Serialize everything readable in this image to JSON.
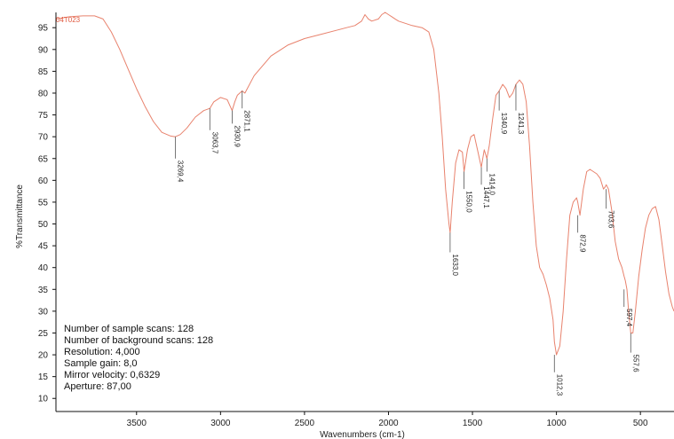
{
  "chart_data": {
    "type": "line",
    "xlabel": "Wavenumbers (cm-1)",
    "ylabel": "%Transmittance",
    "xlim": [
      3980,
      300
    ],
    "ylim": [
      7,
      98.5
    ],
    "x_reversed": true,
    "grid": false,
    "x_ticks": [
      3500,
      3000,
      2500,
      2000,
      1500,
      1000,
      500
    ],
    "y_ticks": [
      10,
      15,
      20,
      25,
      30,
      35,
      40,
      45,
      50,
      55,
      60,
      65,
      70,
      75,
      80,
      85,
      90,
      95
    ],
    "series": [
      {
        "name": "04T023",
        "color": "#e8826d",
        "x": [
          3980,
          3900,
          3820,
          3750,
          3700,
          3650,
          3600,
          3550,
          3500,
          3450,
          3400,
          3350,
          3300,
          3269.4,
          3240,
          3200,
          3150,
          3100,
          3063.7,
          3040,
          3000,
          2960,
          2930.9,
          2915,
          2900,
          2871.1,
          2855,
          2800,
          2700,
          2600,
          2500,
          2400,
          2300,
          2250,
          2200,
          2160,
          2140,
          2120,
          2100,
          2060,
          2040,
          2020,
          2000,
          1980,
          1960,
          1940,
          1900,
          1860,
          1800,
          1760,
          1730,
          1700,
          1680,
          1660,
          1640,
          1633.0,
          1620,
          1600,
          1580,
          1560,
          1550.0,
          1530,
          1510,
          1490,
          1470,
          1447.1,
          1430,
          1414.0,
          1400,
          1380,
          1360,
          1340.9,
          1320,
          1300,
          1280,
          1260,
          1241.3,
          1220,
          1200,
          1180,
          1160,
          1140,
          1120,
          1100,
          1080,
          1060,
          1040,
          1020,
          1012.3,
          1000,
          980,
          960,
          940,
          920,
          900,
          880,
          872.9,
          860,
          840,
          820,
          800,
          780,
          760,
          740,
          720,
          710,
          703.6,
          690,
          670,
          650,
          630,
          610,
          597.4,
          590,
          580,
          570,
          557.6,
          545,
          530,
          510,
          490,
          470,
          450,
          430,
          410,
          390,
          370,
          350,
          330,
          310,
          300
        ],
        "y": [
          97,
          97.5,
          97.7,
          97.7,
          97,
          94,
          90,
          85.5,
          81,
          77,
          73.5,
          71,
          70.2,
          70,
          70.5,
          72,
          74.5,
          76,
          76.5,
          78,
          79,
          78.5,
          76,
          78,
          79.5,
          80.5,
          80,
          84,
          88.5,
          91,
          92.5,
          93.5,
          94.5,
          95,
          95.5,
          96.5,
          98,
          97,
          96.5,
          97,
          98,
          98.5,
          98,
          97.5,
          97,
          96.5,
          96,
          95.5,
          95,
          94,
          90,
          80,
          70,
          58,
          50,
          48,
          55,
          64,
          67,
          66.5,
          62,
          67,
          70,
          70.5,
          67,
          63,
          67,
          65,
          68,
          74,
          79.5,
          80.5,
          82,
          81,
          79,
          80,
          82,
          83,
          82,
          78,
          68,
          55,
          45,
          40,
          38.5,
          36,
          33,
          28,
          23,
          20,
          22,
          30,
          42,
          52,
          55,
          56,
          55,
          52,
          58,
          62,
          62.5,
          62,
          61.5,
          60.5,
          58,
          58.5,
          59,
          58,
          53,
          46,
          42,
          40,
          38,
          37,
          35,
          30,
          25,
          25,
          30,
          38,
          44,
          49,
          52,
          53.5,
          54,
          51,
          45,
          39,
          34,
          31,
          30
        ]
      }
    ],
    "peak_labels": [
      {
        "x": 3269.4,
        "y_top": 70,
        "y_bottom": 65,
        "label": "3269,4"
      },
      {
        "x": 3063.7,
        "y_top": 76.5,
        "y_bottom": 71.5,
        "label": "3063,7"
      },
      {
        "x": 2930.9,
        "y_top": 76,
        "y_bottom": 73,
        "label": "2930,9"
      },
      {
        "x": 2871.1,
        "y_top": 80.5,
        "y_bottom": 76.5,
        "label": "2871,1"
      },
      {
        "x": 1633.0,
        "y_top": 48,
        "y_bottom": 43.5,
        "label": "1633,0"
      },
      {
        "x": 1550.0,
        "y_top": 62,
        "y_bottom": 58,
        "label": "1550,0"
      },
      {
        "x": 1447.1,
        "y_top": 63,
        "y_bottom": 59,
        "label": "1447,1"
      },
      {
        "x": 1414.0,
        "y_top": 65,
        "y_bottom": 62,
        "label": "1414,0"
      },
      {
        "x": 1340.9,
        "y_top": 80.5,
        "y_bottom": 76,
        "label": "1340,9"
      },
      {
        "x": 1241.3,
        "y_top": 82,
        "y_bottom": 76,
        "label": "1241,3"
      },
      {
        "x": 1012.3,
        "y_top": 20,
        "y_bottom": 16,
        "label": "1012,3"
      },
      {
        "x": 872.9,
        "y_top": 52,
        "y_bottom": 48,
        "label": "872,9"
      },
      {
        "x": 703.6,
        "y_top": 58,
        "y_bottom": 53.5,
        "label": "703,6"
      },
      {
        "x": 597.4,
        "y_top": 35,
        "y_bottom": 31,
        "label": "597,4"
      },
      {
        "x": 557.6,
        "y_top": 25,
        "y_bottom": 20.5,
        "label": "557,6"
      }
    ],
    "info": [
      "Number of sample scans:  128",
      "Number of background scans:  128",
      "Resolution:  4,000",
      "Sample gain:  8,0",
      "Mirror velocity:  0,6329",
      "Aperture:  87,00"
    ]
  },
  "colors": {
    "spectrum": "#e8826d",
    "series_label": "#e05a40",
    "peak_line": "#555555",
    "axis": "#111111"
  }
}
